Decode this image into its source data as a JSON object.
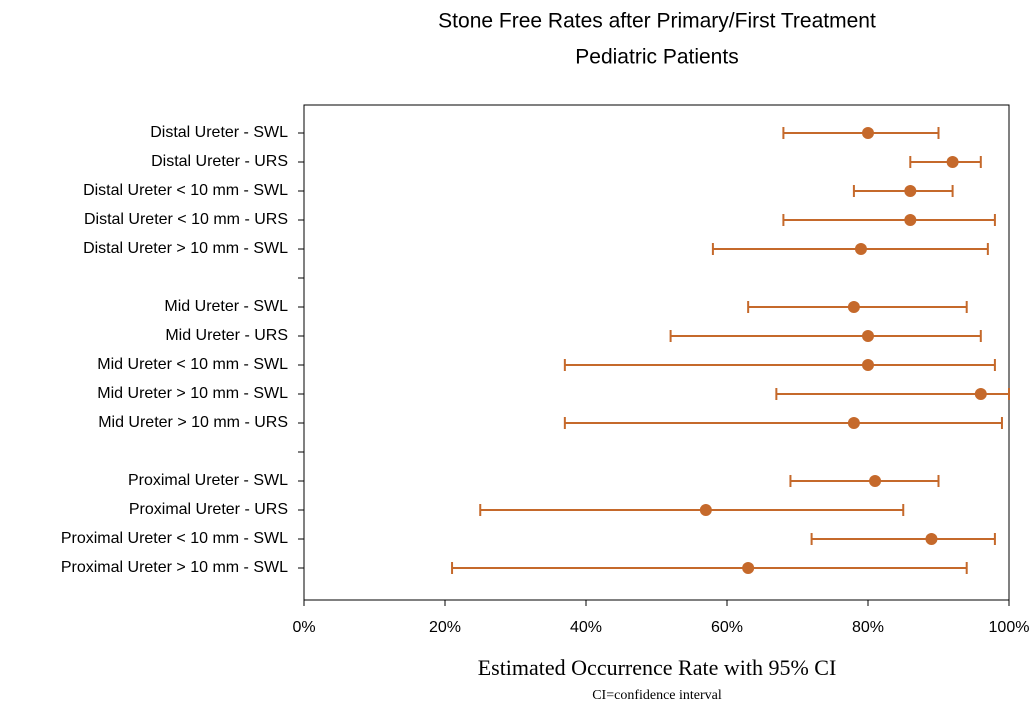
{
  "chart_data": {
    "type": "errorbar",
    "title": "Stone Free Rates after Primary/First Treatment",
    "subtitle": "Pediatric Patients",
    "x_label": "Estimated Occurrence Rate with 95% CI",
    "x_note": "CI=confidence interval",
    "categories": [
      "Distal Ureter  - SWL",
      "Distal Ureter  - URS",
      "Distal Ureter  < 10 mm - SWL",
      "Distal Ureter  < 10 mm - URS",
      "Distal Ureter  > 10 mm - SWL",
      null,
      "Mid Ureter - SWL",
      "Mid Ureter - URS",
      "Mid Ureter < 10 mm - SWL",
      "Mid Ureter > 10 mm - SWL",
      "Mid Ureter > 10 mm - URS",
      null,
      "Proximal Ureter - SWL",
      "Proximal Ureter - URS",
      "Proximal Ureter < 10 mm - SWL",
      "Proximal Ureter > 10 mm - SWL"
    ],
    "color": "#c5692b",
    "values": [
      80,
      92,
      86,
      86,
      79,
      null,
      78,
      80,
      80,
      96,
      78,
      null,
      81,
      57,
      89,
      63
    ],
    "ci_low": [
      68,
      86,
      78,
      68,
      58,
      null,
      63,
      52,
      37,
      67,
      37,
      null,
      69,
      25,
      72,
      21
    ],
    "ci_high": [
      90,
      96,
      92,
      98,
      97,
      null,
      94,
      96,
      98,
      100,
      99,
      null,
      90,
      85,
      98,
      94
    ],
    "xlim": [
      0,
      100
    ],
    "xticks": [
      {
        "value": 0,
        "label": "0%"
      },
      {
        "value": 20,
        "label": "20%"
      },
      {
        "value": 40,
        "label": "40%"
      },
      {
        "value": 60,
        "label": "60%"
      },
      {
        "value": 80,
        "label": "80%"
      },
      {
        "value": 100,
        "label": "100%"
      }
    ]
  }
}
